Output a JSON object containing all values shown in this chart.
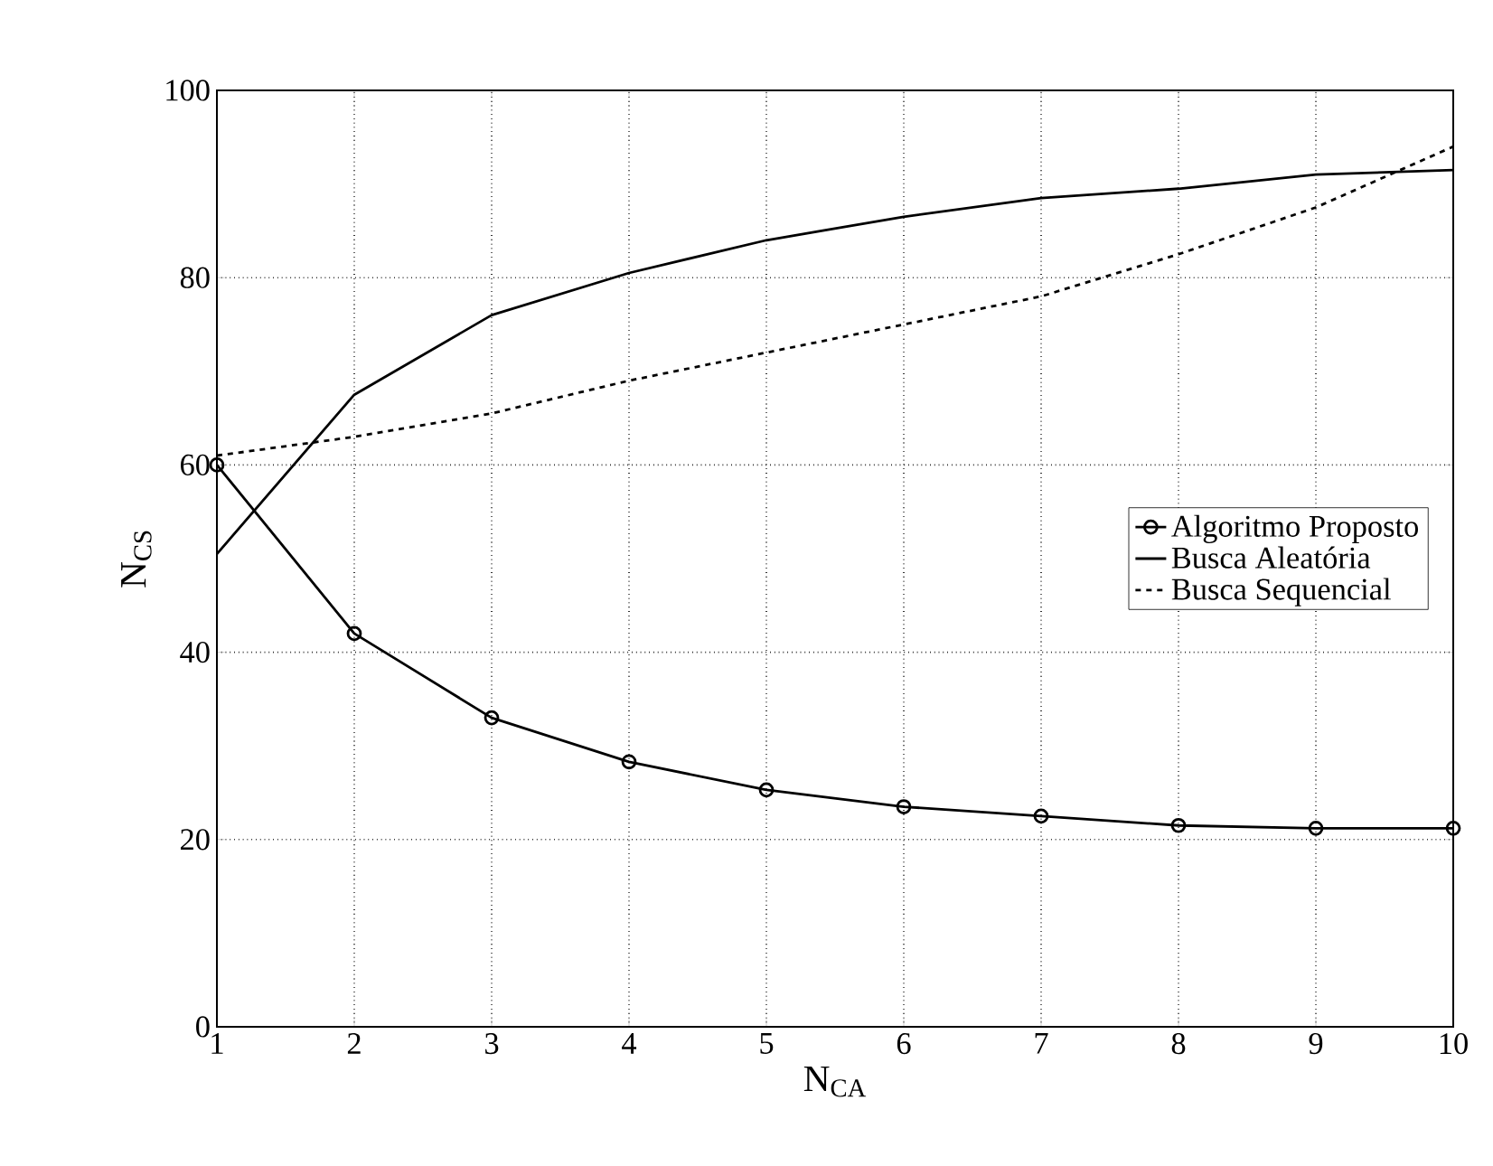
{
  "chart_data": {
    "type": "line",
    "xlabel": "N$_{CA}$",
    "ylabel": "N$_{CS}$",
    "x": [
      1,
      2,
      3,
      4,
      5,
      6,
      7,
      8,
      9,
      10
    ],
    "xlim": [
      1,
      10
    ],
    "ylim": [
      0,
      100
    ],
    "xticks": [
      1,
      2,
      3,
      4,
      5,
      6,
      7,
      8,
      9,
      10
    ],
    "yticks": [
      0,
      20,
      40,
      60,
      80,
      100
    ],
    "grid": true,
    "legend": "right",
    "series": [
      {
        "name": "Algoritmo Proposto",
        "color": "#000000",
        "marker": "circle",
        "line_style": "solid",
        "values": [
          60,
          42,
          33,
          28.3,
          25.3,
          23.5,
          22.5,
          21.5,
          21.2,
          21.2
        ]
      },
      {
        "name": "Busca Aleatória",
        "color": "#000000",
        "marker": "none",
        "line_style": "solid",
        "values": [
          50.5,
          67.5,
          76,
          80.5,
          84,
          86.5,
          88.5,
          89.5,
          91,
          91.5
        ]
      },
      {
        "name": "Busca Sequencial",
        "color": "#000000",
        "marker": "none",
        "line_style": "dashed",
        "values": [
          61,
          63,
          65.5,
          69,
          72,
          75,
          78,
          82.5,
          87.5,
          94
        ]
      }
    ]
  }
}
